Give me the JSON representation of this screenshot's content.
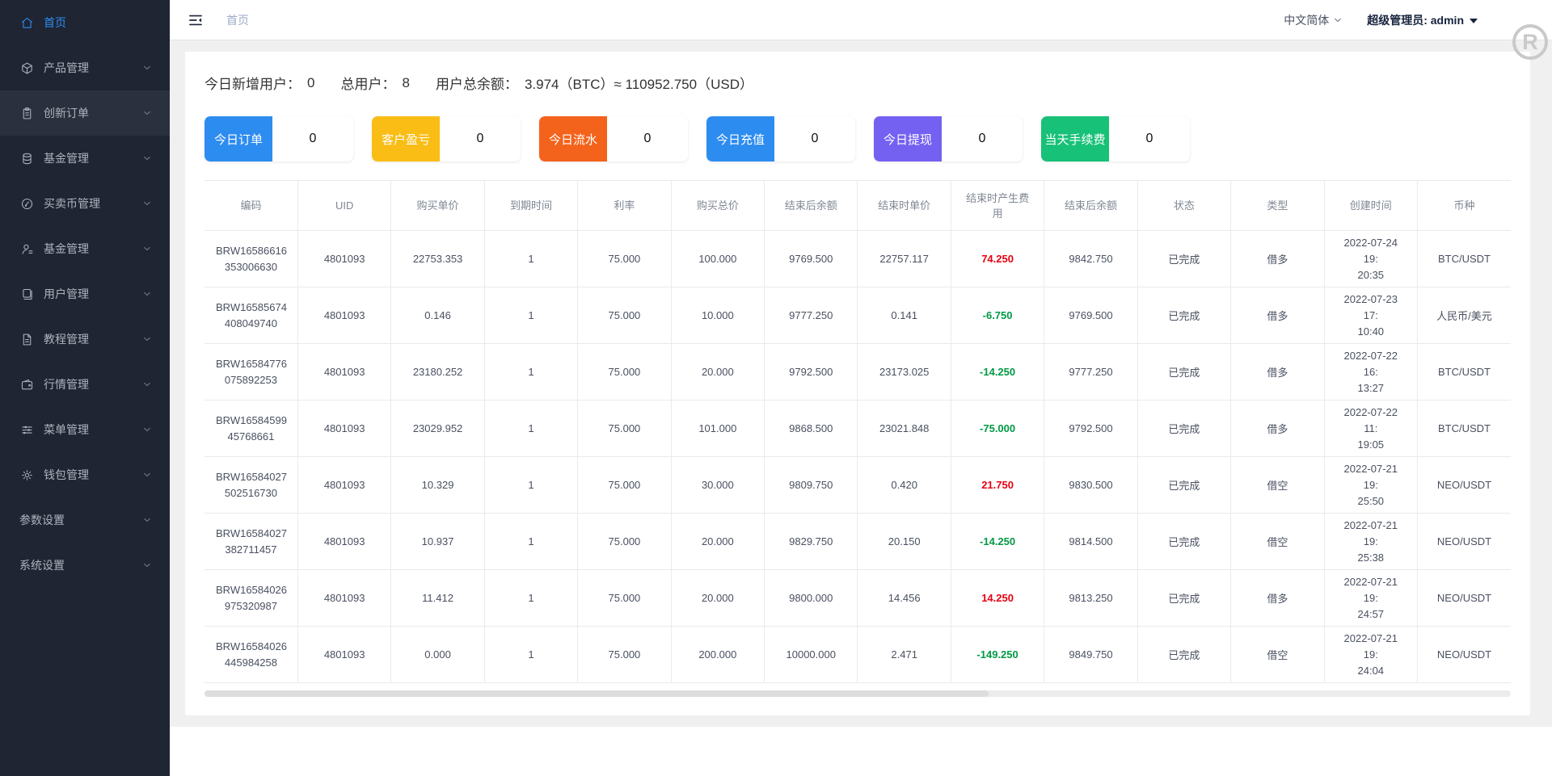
{
  "sidebar": {
    "items": [
      {
        "key": "home",
        "label": "首页",
        "icon": "home",
        "active": true,
        "highlighted": false,
        "has_children": false
      },
      {
        "key": "product",
        "label": "产品管理",
        "icon": "cube",
        "active": false,
        "highlighted": false,
        "has_children": true
      },
      {
        "key": "innovation-order",
        "label": "创新订单",
        "icon": "order",
        "active": false,
        "highlighted": true,
        "has_children": true
      },
      {
        "key": "fund",
        "label": "基金管理",
        "icon": "coins",
        "active": false,
        "highlighted": false,
        "has_children": true
      },
      {
        "key": "trade-coin",
        "label": "买卖币管理",
        "icon": "edit-circle",
        "active": false,
        "highlighted": false,
        "has_children": true
      },
      {
        "key": "fund-2",
        "label": "基金管理",
        "icon": "user",
        "active": false,
        "highlighted": false,
        "has_children": true
      },
      {
        "key": "user",
        "label": "用户管理",
        "icon": "book",
        "active": false,
        "highlighted": false,
        "has_children": true
      },
      {
        "key": "tutorial",
        "label": "教程管理",
        "icon": "document",
        "active": false,
        "highlighted": false,
        "has_children": true
      },
      {
        "key": "market",
        "label": "行情管理",
        "icon": "wallet",
        "active": false,
        "highlighted": false,
        "has_children": true
      },
      {
        "key": "menu",
        "label": "菜单管理",
        "icon": "sliders",
        "active": false,
        "highlighted": false,
        "has_children": true
      },
      {
        "key": "wallet",
        "label": "钱包管理",
        "icon": "gear",
        "active": false,
        "highlighted": false,
        "has_children": true
      },
      {
        "key": "params",
        "label": "参数设置",
        "icon": null,
        "active": false,
        "highlighted": false,
        "has_children": true
      },
      {
        "key": "system",
        "label": "系统设置",
        "icon": null,
        "active": false,
        "highlighted": false,
        "has_children": true
      }
    ]
  },
  "header": {
    "breadcrumb": "首页",
    "language": "中文简体",
    "admin": "超级管理员: admin"
  },
  "watermark": "R",
  "overview": {
    "stats": [
      {
        "label": "今日新增用户：",
        "value": "0"
      },
      {
        "label": "总用户：",
        "value": "8"
      },
      {
        "label": "用户总余额：",
        "value": "3.974（BTC）≈ 110952.750（USD）"
      }
    ]
  },
  "stat_cards": [
    {
      "label": "今日订单",
      "value": "0",
      "color": "#2d8cf0"
    },
    {
      "label": "客户盈亏",
      "value": "0",
      "color": "#f9bd16"
    },
    {
      "label": "今日流水",
      "value": "0",
      "color": "#f4631c"
    },
    {
      "label": "今日充值",
      "value": "0",
      "color": "#2d8cf0"
    },
    {
      "label": "今日提现",
      "value": "0",
      "color": "#7461f1"
    },
    {
      "label": "当天手续费",
      "value": "0",
      "color": "#17c177"
    }
  ],
  "table": {
    "headers": [
      "编码",
      "UID",
      "购买单价",
      "到期时间",
      "利率",
      "购买总价",
      "结束后余额",
      "结束时单价",
      "结束时产生费用",
      "结束后余额",
      "状态",
      "类型",
      "创建时间",
      "币种"
    ],
    "fee_column_index": 8,
    "rows": [
      {
        "cells": [
          [
            "BRW16586616",
            "353006630"
          ],
          "4801093",
          "22753.353",
          "1",
          "75.000",
          "100.000",
          "9769.500",
          "22757.117",
          "74.250",
          "9842.750",
          "已完成",
          "借多",
          [
            "2022-07-24 19:",
            "20:35"
          ],
          "BTC/USDT"
        ]
      },
      {
        "cells": [
          [
            "BRW16585674",
            "408049740"
          ],
          "4801093",
          "0.146",
          "1",
          "75.000",
          "10.000",
          "9777.250",
          "0.141",
          "-6.750",
          "9769.500",
          "已完成",
          "借多",
          [
            "2022-07-23 17:",
            "10:40"
          ],
          "人民币/美元"
        ]
      },
      {
        "cells": [
          [
            "BRW16584776",
            "075892253"
          ],
          "4801093",
          "23180.252",
          "1",
          "75.000",
          "20.000",
          "9792.500",
          "23173.025",
          "-14.250",
          "9777.250",
          "已完成",
          "借多",
          [
            "2022-07-22 16:",
            "13:27"
          ],
          "BTC/USDT"
        ]
      },
      {
        "cells": [
          [
            "BRW16584599",
            "45768661"
          ],
          "4801093",
          "23029.952",
          "1",
          "75.000",
          "101.000",
          "9868.500",
          "23021.848",
          "-75.000",
          "9792.500",
          "已完成",
          "借多",
          [
            "2022-07-22 11:",
            "19:05"
          ],
          "BTC/USDT"
        ]
      },
      {
        "cells": [
          [
            "BRW16584027",
            "502516730"
          ],
          "4801093",
          "10.329",
          "1",
          "75.000",
          "30.000",
          "9809.750",
          "0.420",
          "21.750",
          "9830.500",
          "已完成",
          "借空",
          [
            "2022-07-21 19:",
            "25:50"
          ],
          "NEO/USDT"
        ]
      },
      {
        "cells": [
          [
            "BRW16584027",
            "382711457"
          ],
          "4801093",
          "10.937",
          "1",
          "75.000",
          "20.000",
          "9829.750",
          "20.150",
          "-14.250",
          "9814.500",
          "已完成",
          "借空",
          [
            "2022-07-21 19:",
            "25:38"
          ],
          "NEO/USDT"
        ]
      },
      {
        "cells": [
          [
            "BRW16584026",
            "975320987"
          ],
          "4801093",
          "11.412",
          "1",
          "75.000",
          "20.000",
          "9800.000",
          "14.456",
          "14.250",
          "9813.250",
          "已完成",
          "借多",
          [
            "2022-07-21 19:",
            "24:57"
          ],
          "NEO/USDT"
        ]
      },
      {
        "cells": [
          [
            "BRW16584026",
            "445984258"
          ],
          "4801093",
          "0.000",
          "1",
          "75.000",
          "200.000",
          "10000.000",
          "2.471",
          "-149.250",
          "9849.750",
          "已完成",
          "借空",
          [
            "2022-07-21 19:",
            "24:04"
          ],
          "NEO/USDT"
        ]
      }
    ]
  },
  "colors": {
    "sidebar_bg": "#1f2533",
    "accent_blue": "#2d8cf0",
    "fee_positive_red": "#e60012",
    "fee_negative_green": "#009944",
    "content_bg": "#f0f0f1",
    "table_border": "#e8eaec"
  }
}
